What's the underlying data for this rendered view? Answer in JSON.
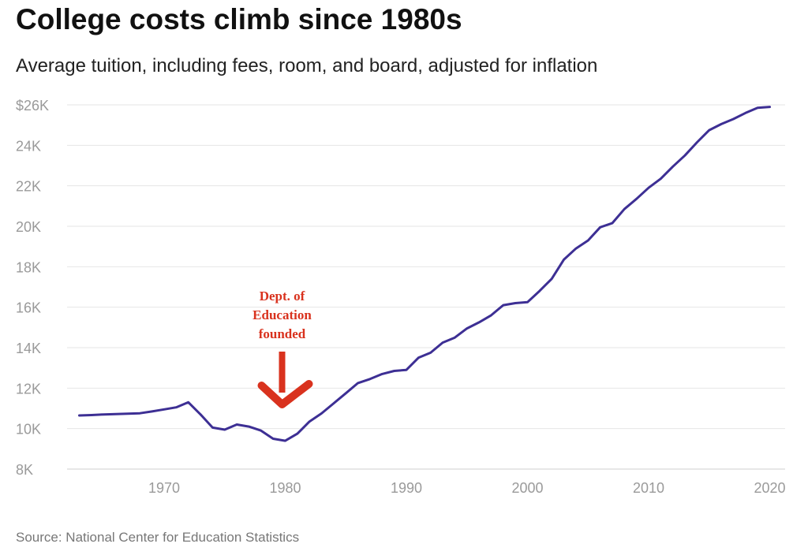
{
  "chart_data": {
    "type": "line",
    "title": "College costs climb since 1980s",
    "subtitle": "Average tuition, including fees, room, and board, adjusted for inflation",
    "source": "Source: National Center for Education Statistics",
    "xlabel": "",
    "ylabel": "",
    "xlim": [
      1962,
      2020
    ],
    "ylim": [
      8000,
      26000
    ],
    "x_ticks": [
      1970,
      1980,
      1990,
      2000,
      2010,
      2020
    ],
    "y_ticks": [
      {
        "value": 8000,
        "label": "8K"
      },
      {
        "value": 10000,
        "label": "10K"
      },
      {
        "value": 12000,
        "label": "12K"
      },
      {
        "value": 14000,
        "label": "14K"
      },
      {
        "value": 16000,
        "label": "16K"
      },
      {
        "value": 18000,
        "label": "18K"
      },
      {
        "value": 20000,
        "label": "20K"
      },
      {
        "value": 22000,
        "label": "22K"
      },
      {
        "value": 24000,
        "label": "24K"
      },
      {
        "value": 26000,
        "label": "$26K"
      }
    ],
    "grid": true,
    "line_color": "#3d2f94",
    "series": [
      {
        "x": [
          1963,
          1964,
          1965,
          1966,
          1967,
          1968,
          1969,
          1970,
          1971,
          1972,
          1973,
          1974,
          1975,
          1976,
          1977,
          1978,
          1979,
          1980,
          1981,
          1982,
          1983,
          1984,
          1985,
          1986,
          1987,
          1988,
          1989,
          1990,
          1991,
          1992,
          1993,
          1994,
          1995,
          1996,
          1997,
          1998,
          1999,
          2000,
          2001,
          2002,
          2003,
          2004,
          2005,
          2006,
          2007,
          2008,
          2009,
          2010,
          2011,
          2012,
          2013,
          2014,
          2015,
          2016,
          2017,
          2018,
          2019,
          2020
        ],
        "values": [
          10650,
          10670,
          10700,
          10720,
          10740,
          10760,
          10850,
          10950,
          11050,
          11300,
          10700,
          10050,
          9950,
          10200,
          10100,
          9900,
          9500,
          9400,
          9750,
          10350,
          10750,
          11250,
          11750,
          12250,
          12450,
          12700,
          12850,
          12900,
          13500,
          13750,
          14250,
          14500,
          14950,
          15250,
          15600,
          16100,
          16200,
          16250,
          16800,
          17400,
          18350,
          18900,
          19300,
          19950,
          20150,
          20850,
          21350,
          21900,
          22350,
          22950,
          23500,
          24150,
          24750,
          25050,
          25300,
          25600,
          25850,
          25900
        ]
      }
    ],
    "annotation": {
      "lines": [
        "Dept. of",
        "Education",
        "founded"
      ],
      "color": "#d9321e",
      "arrow_x": 1980
    }
  }
}
